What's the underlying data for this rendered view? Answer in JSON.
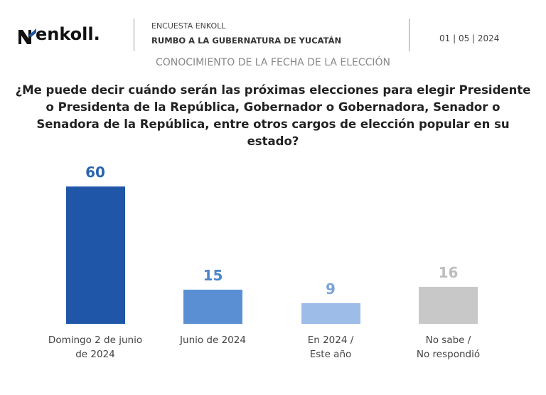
{
  "header": {
    "logo": "enkoll.",
    "survey": "ENCUESTA ENKOLL",
    "topic": "RUMBO A LA GUBERNATURA DE YUCATÁN",
    "date": "01 | 05 | 2024"
  },
  "chart_data": {
    "type": "bar",
    "subtitle": "CONOCIMIENTO DE LA FECHA DE LA ELECCIÓN",
    "title": "¿Me puede decir cuándo serán las próximas elecciones para elegir Presidente o Presidenta de la República, Gobernador o Gobernadora, Senador o Senadora de la República, entre otros cargos de elección popular en su estado?",
    "categories": [
      "Domingo 2 de junio\nde 2024",
      "Junio de 2024",
      "En 2024 /\nEste año",
      "No sabe /\nNo respondió"
    ],
    "values": [
      60,
      15,
      9,
      16
    ],
    "colors": [
      "#1f56a8",
      "#5b8fd4",
      "#9dbde8",
      "#c8c8c8"
    ],
    "label_colors": [
      "#2a64b0",
      "#4d86c9",
      "#7aa3d8",
      "#bdbdbd"
    ]
  }
}
